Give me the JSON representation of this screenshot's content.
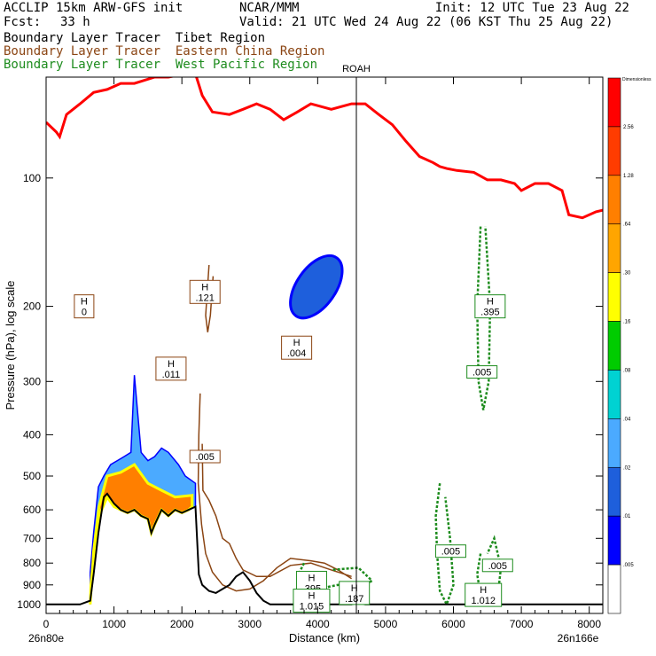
{
  "header": {
    "model": "ACCLIP 15km ARW-GFS init",
    "org": "NCAR/MMM",
    "init": "Init: 12 UTC Tue 23 Aug 22",
    "fcst_label": "Fcst:",
    "fcst_value": "33 h",
    "valid": "Valid: 21 UTC Wed 24 Aug 22 (06 KST Thu 25 Aug 22)",
    "line1": "Boundary Layer Tracer  Tibet Region",
    "line2": "Boundary Layer Tracer  Eastern China Region",
    "line3": "Boundary Layer Tracer  West Pacific Region"
  },
  "colors": {
    "tibet": "#000000",
    "eastern_china": "#8b4513",
    "west_pacific": "#1e8c1e",
    "tropopause": "#ff0000",
    "terrain": "#000000"
  },
  "chart_data": {
    "type": "cross-section",
    "xlabel": "Distance (km)",
    "ylabel": "Pressure (hPa), log scale",
    "x_ticks": [
      0,
      1000,
      2000,
      3000,
      4000,
      5000,
      6000,
      7000,
      8000
    ],
    "y_ticks": [
      1000,
      900,
      800,
      700,
      600,
      500,
      400,
      300,
      200,
      100
    ],
    "xlim": [
      0,
      8200
    ],
    "ylim": [
      1050,
      58
    ],
    "left_endpoint": "26n80e",
    "right_endpoint": "26n166e",
    "marker": {
      "label": "ROAH",
      "x": 4570
    },
    "colorbar": {
      "top_label": "Dimensionless",
      "levels": [
        ".005",
        ".01",
        ".02",
        ".04",
        ".08",
        ".16",
        ".30",
        ".64",
        "1.28",
        "2.56"
      ],
      "colors": [
        "#ffffff",
        "#0000ff",
        "#1e5fdc",
        "#4baaff",
        "#00d2d2",
        "#00cc00",
        "#ffff00",
        "#ffa500",
        "#ff7f00",
        "#ff3c00",
        "#ff0000"
      ]
    },
    "tropopause": [
      [
        0,
        74
      ],
      [
        150,
        78
      ],
      [
        200,
        80
      ],
      [
        300,
        71
      ],
      [
        500,
        67
      ],
      [
        700,
        63
      ],
      [
        900,
        62
      ],
      [
        1100,
        60
      ],
      [
        1300,
        60
      ],
      [
        1600,
        58
      ],
      [
        1800,
        58
      ],
      [
        2050,
        57
      ],
      [
        2200,
        57
      ],
      [
        2300,
        64
      ],
      [
        2450,
        70
      ],
      [
        2700,
        71
      ],
      [
        2900,
        69
      ],
      [
        3100,
        67
      ],
      [
        3300,
        69
      ],
      [
        3500,
        73
      ],
      [
        3700,
        70
      ],
      [
        3900,
        67
      ],
      [
        4200,
        69
      ],
      [
        4500,
        67
      ],
      [
        4700,
        67
      ],
      [
        4900,
        71
      ],
      [
        5100,
        75
      ],
      [
        5300,
        82
      ],
      [
        5500,
        89
      ],
      [
        5700,
        92
      ],
      [
        5800,
        94
      ],
      [
        5900,
        95
      ],
      [
        6050,
        96
      ],
      [
        6300,
        97
      ],
      [
        6500,
        101
      ],
      [
        6700,
        101
      ],
      [
        6900,
        103
      ],
      [
        7000,
        107
      ],
      [
        7200,
        103
      ],
      [
        7400,
        103
      ],
      [
        7600,
        107
      ],
      [
        7700,
        122
      ],
      [
        7900,
        124
      ],
      [
        8100,
        120
      ],
      [
        8200,
        119
      ]
    ],
    "terrain": [
      [
        0,
        1000
      ],
      [
        500,
        1000
      ],
      [
        650,
        980
      ],
      [
        700,
        850
      ],
      [
        770,
        680
      ],
      [
        850,
        560
      ],
      [
        900,
        550
      ],
      [
        1000,
        580
      ],
      [
        1100,
        600
      ],
      [
        1200,
        610
      ],
      [
        1300,
        600
      ],
      [
        1400,
        620
      ],
      [
        1500,
        630
      ],
      [
        1550,
        680
      ],
      [
        1600,
        650
      ],
      [
        1700,
        600
      ],
      [
        1800,
        620
      ],
      [
        1900,
        600
      ],
      [
        2000,
        610
      ],
      [
        2100,
        600
      ],
      [
        2200,
        590
      ],
      [
        2250,
        850
      ],
      [
        2300,
        900
      ],
      [
        2400,
        930
      ],
      [
        2500,
        940
      ],
      [
        2600,
        920
      ],
      [
        2700,
        900
      ],
      [
        2800,
        860
      ],
      [
        2900,
        840
      ],
      [
        3000,
        880
      ],
      [
        3100,
        940
      ],
      [
        3200,
        980
      ],
      [
        3300,
        1000
      ],
      [
        4500,
        1000
      ],
      [
        4600,
        990
      ],
      [
        4700,
        1000
      ],
      [
        8200,
        1000
      ]
    ],
    "tibet_tracer_fill": [
      [
        650,
        1000
      ],
      [
        650,
        840
      ],
      [
        700,
        680
      ],
      [
        770,
        530
      ],
      [
        850,
        500
      ],
      [
        950,
        470
      ],
      [
        1050,
        460
      ],
      [
        1150,
        450
      ],
      [
        1250,
        440
      ],
      [
        1300,
        290
      ],
      [
        1400,
        440
      ],
      [
        1500,
        460
      ],
      [
        1600,
        450
      ],
      [
        1700,
        430
      ],
      [
        1800,
        440
      ],
      [
        1950,
        470
      ],
      [
        2050,
        500
      ],
      [
        2200,
        520
      ],
      [
        2200,
        590
      ],
      [
        2100,
        600
      ],
      [
        2000,
        610
      ],
      [
        1900,
        600
      ],
      [
        1800,
        620
      ],
      [
        1700,
        600
      ],
      [
        1600,
        650
      ],
      [
        1550,
        680
      ],
      [
        1500,
        630
      ],
      [
        1400,
        620
      ],
      [
        1300,
        600
      ],
      [
        1200,
        610
      ],
      [
        1100,
        600
      ],
      [
        1000,
        580
      ],
      [
        900,
        550
      ],
      [
        850,
        560
      ],
      [
        770,
        680
      ],
      [
        700,
        850
      ],
      [
        650,
        980
      ]
    ],
    "tibet_inner_fill": [
      [
        650,
        1000
      ],
      [
        660,
        900
      ],
      [
        720,
        720
      ],
      [
        800,
        610
      ],
      [
        900,
        560
      ],
      [
        1000,
        590
      ],
      [
        1100,
        600
      ],
      [
        1200,
        610
      ],
      [
        1300,
        600
      ],
      [
        1400,
        620
      ],
      [
        1500,
        630
      ],
      [
        1550,
        680
      ],
      [
        1600,
        650
      ],
      [
        1700,
        600
      ],
      [
        1800,
        620
      ],
      [
        1900,
        600
      ],
      [
        2000,
        610
      ],
      [
        2100,
        600
      ],
      [
        2150,
        590
      ],
      [
        2150,
        555
      ],
      [
        1900,
        560
      ],
      [
        1700,
        540
      ],
      [
        1500,
        520
      ],
      [
        1300,
        470
      ],
      [
        1100,
        490
      ],
      [
        900,
        500
      ],
      [
        780,
        590
      ],
      [
        700,
        750
      ]
    ],
    "blue_blob_center": [
      3980,
      180
    ],
    "brown_contours": [
      [
        [
          2270,
          320
        ],
        [
          2250,
          400
        ],
        [
          2240,
          520
        ],
        [
          2290,
          650
        ],
        [
          2350,
          760
        ],
        [
          2450,
          840
        ],
        [
          2600,
          900
        ],
        [
          2800,
          930
        ],
        [
          3000,
          920
        ],
        [
          3200,
          880
        ],
        [
          3400,
          820
        ],
        [
          3600,
          780
        ],
        [
          3900,
          790
        ],
        [
          4100,
          800
        ],
        [
          4300,
          830
        ],
        [
          4500,
          870
        ]
      ],
      [
        [
          2300,
          420
        ],
        [
          2310,
          540
        ],
        [
          2400,
          570
        ],
        [
          2500,
          620
        ],
        [
          2600,
          700
        ],
        [
          2700,
          720
        ],
        [
          2800,
          780
        ],
        [
          2900,
          830
        ],
        [
          3100,
          860
        ],
        [
          3300,
          860
        ],
        [
          3600,
          810
        ],
        [
          3900,
          800
        ],
        [
          4200,
          830
        ],
        [
          4500,
          860
        ]
      ],
      [
        [
          2400,
          160
        ],
        [
          2350,
          210
        ],
        [
          2380,
          230
        ],
        [
          2420,
          210
        ],
        [
          2460,
          170
        ]
      ]
    ],
    "green_contours": [
      [
        [
          6400,
          130
        ],
        [
          6350,
          200
        ],
        [
          6370,
          300
        ],
        [
          6440,
          350
        ],
        [
          6520,
          300
        ],
        [
          6540,
          200
        ],
        [
          6470,
          130
        ]
      ],
      [
        [
          5800,
          520
        ],
        [
          5740,
          620
        ],
        [
          5760,
          760
        ],
        [
          5800,
          930
        ],
        [
          5900,
          1000
        ],
        [
          6000,
          900
        ],
        [
          5950,
          700
        ],
        [
          5880,
          560
        ]
      ],
      [
        [
          6400,
          760
        ],
        [
          6350,
          850
        ],
        [
          6400,
          950
        ],
        [
          6500,
          980
        ],
        [
          6650,
          960
        ],
        [
          6700,
          820
        ],
        [
          6600,
          700
        ],
        [
          6500,
          760
        ]
      ],
      [
        [
          3800,
          800
        ],
        [
          3700,
          860
        ],
        [
          3800,
          920
        ],
        [
          4000,
          920
        ],
        [
          4300,
          900
        ],
        [
          4600,
          920
        ],
        [
          4800,
          880
        ],
        [
          4600,
          820
        ],
        [
          4200,
          830
        ]
      ]
    ],
    "labels": [
      {
        "text": "H",
        "value": "0",
        "x": 560,
        "p": 200,
        "color": "brown"
      },
      {
        "text": "H",
        "value": ".121",
        "x": 2340,
        "p": 185,
        "color": "brown"
      },
      {
        "text": "H",
        "value": ".011",
        "x": 1840,
        "p": 280,
        "color": "brown"
      },
      {
        "text": "H",
        "value": ".004",
        "x": 3690,
        "p": 250,
        "color": "brown"
      },
      {
        "text": "",
        "value": ".005",
        "x": 2340,
        "p": 450,
        "color": "brown"
      },
      {
        "text": "H",
        "value": ".395",
        "x": 6540,
        "p": 200,
        "color": "green"
      },
      {
        "text": "",
        "value": ".005",
        "x": 6420,
        "p": 285,
        "color": "green"
      },
      {
        "text": "",
        "value": ".005",
        "x": 5960,
        "p": 750,
        "color": "green"
      },
      {
        "text": "",
        "value": ".005",
        "x": 6650,
        "p": 810,
        "color": "green"
      },
      {
        "text": "H",
        "value": "1.012",
        "x": 6440,
        "p": 950,
        "color": "green"
      },
      {
        "text": "H",
        "value": ".395",
        "x": 3910,
        "p": 890,
        "color": "green"
      },
      {
        "text": "H",
        "value": ".187",
        "x": 4540,
        "p": 940,
        "color": "green"
      },
      {
        "text": "H",
        "value": "1.015",
        "x": 3910,
        "p": 980,
        "color": "green"
      }
    ]
  }
}
